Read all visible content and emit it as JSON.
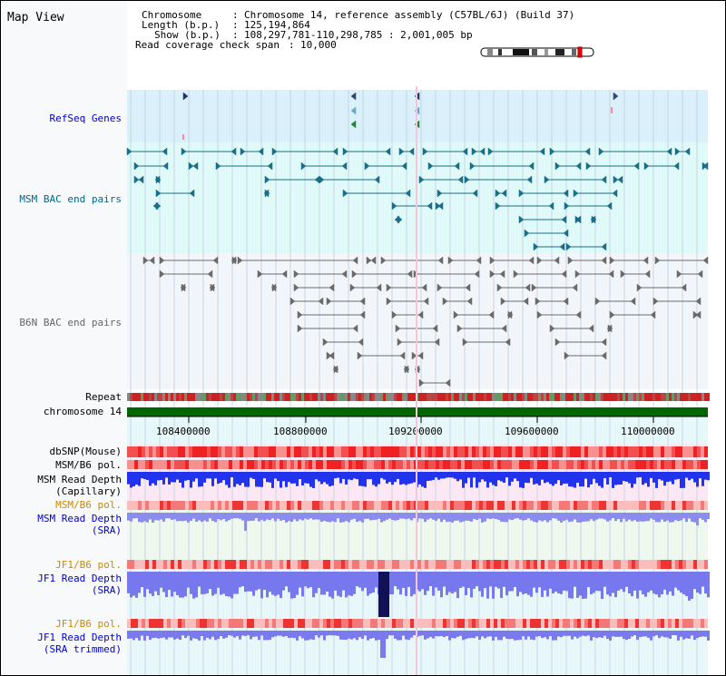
{
  "title": "Map View",
  "info": {
    "chromosome_key": "Chromosome",
    "chromosome_value": "Chromosome 14, reference assembly (C57BL/6J) (Build 37)",
    "length_key": "Length (b.p.)",
    "length_value": "125,194,864",
    "show_key": "Show (b.p.)",
    "show_value": "108,297,781-110,298,785 : 2,001,005 bp",
    "span_key": "Read coverage check span",
    "span_value": "10,000"
  },
  "tracks": {
    "refseq": {
      "label": "RefSeq Genes",
      "color": "#0000cc"
    },
    "msm_bac": {
      "label": "MSM BAC end pairs",
      "color": "#006688"
    },
    "b6n_bac": {
      "label": "B6N BAC end pairs",
      "color": "#666666"
    },
    "repeat": {
      "label": "Repeat"
    },
    "chromosome": {
      "label": "chromosome 14"
    },
    "dbsnp": {
      "label": "dbSNP(Mouse)"
    },
    "msm_pol": {
      "label": "MSM/B6 pol."
    },
    "msm_depth_cap": {
      "label1": "MSM Read Depth",
      "label2": "(Capillary)"
    },
    "msm_pol2": {
      "label": "MSM/B6 pol.",
      "color": "#cc8800"
    },
    "msm_depth_sra": {
      "label1": "MSM Read Depth",
      "label2": "(SRA)",
      "color": "#0000cc"
    },
    "jf1_pol": {
      "label": "JF1/B6 pol.",
      "color": "#cc8800"
    },
    "jf1_depth_sra": {
      "label1": "JF1 Read Depth",
      "label2": "(SRA)",
      "color": "#0000cc"
    },
    "jf1_pol2": {
      "label": "JF1/B6 pol.",
      "color": "#cc8800"
    },
    "jf1_depth_trim": {
      "label1": "JF1 Read Depth",
      "label2": "(SRA trimmed)",
      "color": "#0000cc"
    }
  },
  "axis": {
    "ticks": [
      "108400000",
      "108800000",
      "109200000",
      "109600000",
      "110000000"
    ]
  },
  "colors": {
    "gene_band": "#daf0fa",
    "bac_band": "#e0fafa",
    "b6n_band": "#f2f6fa",
    "depth_band": "#fce8f4",
    "sra_band": "#eef8ee",
    "grid": "#c8d4e4",
    "chrom_bar": "#006600"
  }
}
